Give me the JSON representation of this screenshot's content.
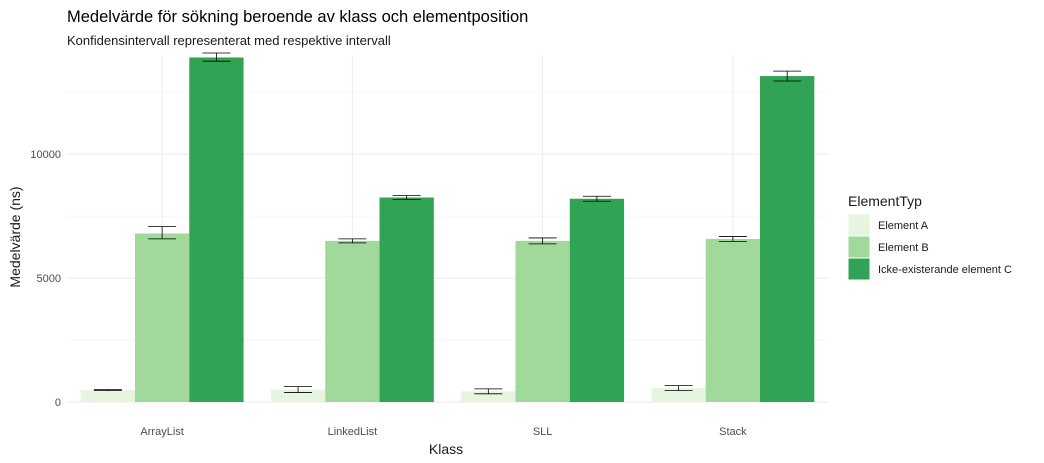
{
  "chart_data": {
    "type": "bar",
    "title": "Medelvärde för sökning beroende av klass och elementposition",
    "subtitle": "Konfidensintervall representerat med respektive intervall",
    "xlabel": "Klass",
    "ylabel": "Medelvärde (ns)",
    "categories": [
      "ArrayList",
      "LinkedList",
      "SLL",
      "Stack"
    ],
    "ylim": [
      0,
      14000
    ],
    "yticks": [
      0,
      5000,
      10000
    ],
    "ytick_labels": [
      "0",
      "5000",
      "10000"
    ],
    "grid": true,
    "legend": {
      "title": "ElementTyp",
      "placement": "right"
    },
    "series": [
      {
        "name": "Element A",
        "color": "#e5f5e0",
        "values": [
          480,
          500,
          430,
          560
        ],
        "err_low": [
          460,
          380,
          330,
          460
        ],
        "err_high": [
          500,
          620,
          530,
          660
        ]
      },
      {
        "name": "Element B",
        "color": "#a1d99b",
        "values": [
          6800,
          6500,
          6500,
          6580
        ],
        "err_low": [
          6580,
          6420,
          6380,
          6480
        ],
        "err_high": [
          7080,
          6580,
          6620,
          6680
        ]
      },
      {
        "name": "Icke-existerande element C",
        "color": "#31a354",
        "values": [
          13900,
          8250,
          8200,
          13150
        ],
        "err_low": [
          13750,
          8170,
          8100,
          12950
        ],
        "err_high": [
          14080,
          8330,
          8300,
          13350
        ]
      }
    ]
  }
}
